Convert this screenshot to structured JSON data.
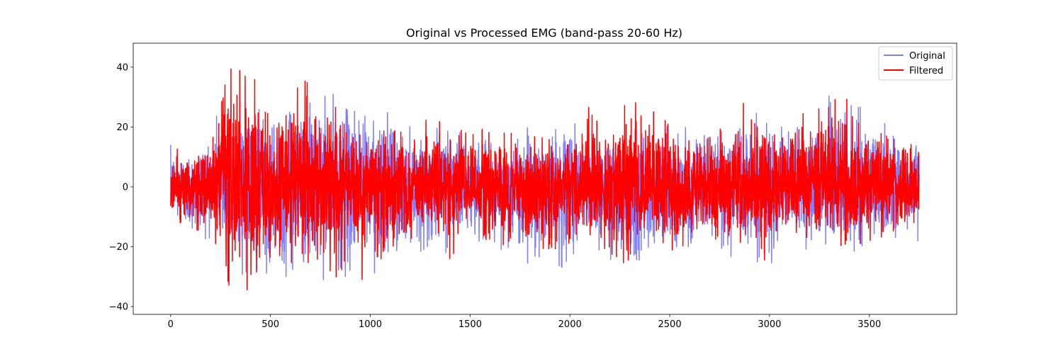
{
  "chart_data": {
    "type": "line",
    "title": "Original vs Processed EMG (band-pass 20-60 Hz)",
    "xlabel": "",
    "ylabel": "",
    "xlim": [
      -187.5,
      3937.5
    ],
    "ylim": [
      -42.6,
      48.0
    ],
    "x_ticks": [
      0,
      500,
      1000,
      1500,
      2000,
      2500,
      3000,
      3500
    ],
    "y_ticks": [
      -40,
      -20,
      0,
      20,
      40
    ],
    "legend_position": "top-right",
    "n_samples": 3750,
    "series": [
      {
        "name": "Original",
        "color": "#0000ff",
        "alpha": 0.5,
        "envelope_x": [
          0,
          100,
          200,
          250,
          280,
          320,
          380,
          420,
          500,
          560,
          620,
          700,
          800,
          900,
          1000,
          1080,
          1200,
          1300,
          1400,
          1500,
          1600,
          1700,
          1800,
          1900,
          2000,
          2060,
          2200,
          2300,
          2400,
          2500,
          2600,
          2700,
          2800,
          2870,
          3000,
          3100,
          3200,
          3300,
          3400,
          3500,
          3600,
          3750
        ],
        "envelope_upper": [
          14,
          14,
          20,
          31,
          27,
          31,
          31,
          31,
          20,
          31,
          31,
          31,
          31,
          31,
          31,
          25,
          20,
          17,
          28,
          15,
          17,
          18,
          20,
          18,
          31,
          20,
          20,
          20,
          22,
          20,
          20,
          18,
          20,
          31,
          20,
          20,
          22,
          31,
          30,
          25,
          20,
          20
        ],
        "envelope_lower": [
          -12,
          -19,
          -17,
          -24,
          -22,
          -28,
          -30,
          -31,
          -30,
          -31,
          -31,
          -31,
          -31,
          -31,
          -28,
          -31,
          -21,
          -22,
          -22,
          -16,
          -23,
          -20,
          -28,
          -25,
          -28,
          -20,
          -24,
          -31,
          -22,
          -20,
          -20,
          -21,
          -26,
          -24,
          -26,
          -20,
          -21,
          -20,
          -22,
          -20,
          -19,
          -18
        ]
      },
      {
        "name": "Filtered",
        "color": "#ff0000",
        "alpha": 1.0,
        "envelope_x": [
          0,
          100,
          200,
          250,
          280,
          320,
          380,
          420,
          500,
          560,
          620,
          700,
          800,
          900,
          1000,
          1080,
          1200,
          1300,
          1400,
          1500,
          1600,
          1700,
          1800,
          1900,
          2000,
          2060,
          2200,
          2300,
          2400,
          2500,
          2600,
          2700,
          2800,
          2870,
          3000,
          3100,
          3200,
          3300,
          3400,
          3500,
          3600,
          3750
        ],
        "envelope_upper": [
          13,
          12,
          16,
          30,
          44,
          38,
          40,
          36,
          25,
          28,
          38,
          34,
          30,
          29,
          25,
          22,
          18,
          25,
          20,
          21,
          18,
          18,
          17,
          16,
          18,
          28,
          22,
          29,
          26,
          21,
          21,
          21,
          20,
          28,
          24,
          24,
          28,
          31,
          29,
          22,
          20,
          18
        ],
        "envelope_lower": [
          -11,
          -15,
          -15,
          -23,
          -34,
          -30,
          -34,
          -39,
          -27,
          -37,
          -29,
          -30,
          -31,
          -28,
          -33,
          -27,
          -22,
          -21,
          -24,
          -14,
          -22,
          -18,
          -27,
          -22,
          -23,
          -17,
          -22,
          -27,
          -20,
          -25,
          -18,
          -20,
          -22,
          -22,
          -26,
          -18,
          -20,
          -19,
          -20,
          -18,
          -16,
          -15
        ]
      }
    ]
  }
}
